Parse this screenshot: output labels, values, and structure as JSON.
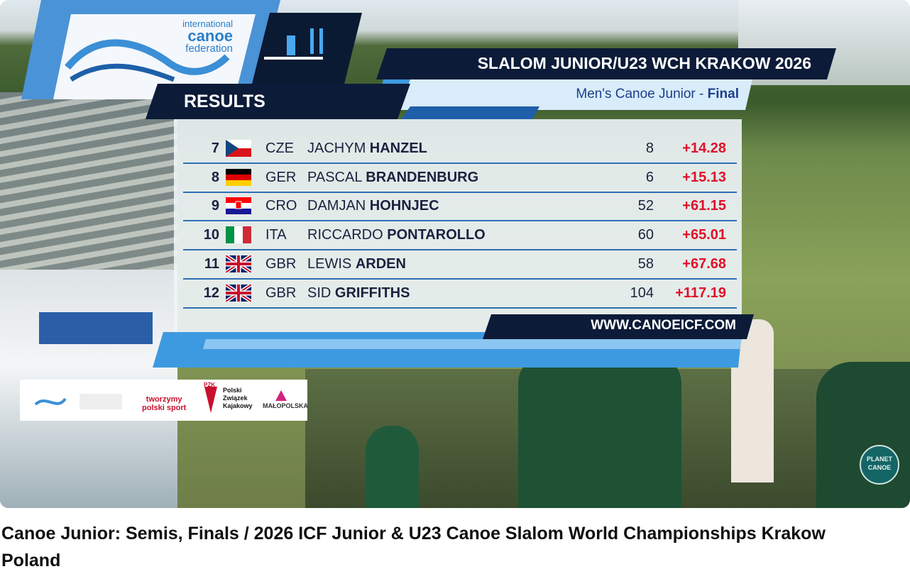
{
  "header": {
    "logo": [
      "international",
      "canoe",
      "federation"
    ],
    "results": "RESULTS",
    "event": "SLALOM JUNIOR/U23 WCH KRAKOW 2026",
    "subtitle": "Men's Canoe Junior - ",
    "phase": "Final"
  },
  "table": {
    "rows": [
      {
        "rank": 7,
        "country": "CZE",
        "first": "JACHYM",
        "last": "HANZEL",
        "penalty": 8,
        "behind": "+14.28"
      },
      {
        "rank": 8,
        "country": "GER",
        "first": "PASCAL",
        "last": "BRANDENBURG",
        "penalty": 6,
        "behind": "+15.13"
      },
      {
        "rank": 9,
        "country": "CRO",
        "first": "DAMJAN",
        "last": "HOHNJEC",
        "penalty": 52,
        "behind": "+61.15"
      },
      {
        "rank": 10,
        "country": "ITA",
        "first": "RICCARDO",
        "last": "PONTAROLLO",
        "penalty": 60,
        "behind": "+65.01"
      },
      {
        "rank": 11,
        "country": "GBR",
        "first": "LEWIS",
        "last": "ARDEN",
        "penalty": 58,
        "behind": "+67.68"
      },
      {
        "rank": 12,
        "country": "GBR",
        "first": "SID",
        "last": "GRIFFITHS",
        "penalty": 104,
        "behind": "+117.19"
      }
    ]
  },
  "website": "WWW.CANOEICF.COM",
  "sponsors": {
    "sport": [
      "tworzymy",
      "polski sport"
    ],
    "pzk": "PZK",
    "pzk_name": [
      "Polski",
      "Związek",
      "Kajakowy"
    ],
    "region": "MAŁOPOLSKA"
  },
  "watermark": [
    "PLANET",
    "CANOE"
  ],
  "video_title": "Canoe Junior: Semis, Finals / 2026 ICF Junior & U23 Canoe Slalom World Championships Krakow Poland"
}
